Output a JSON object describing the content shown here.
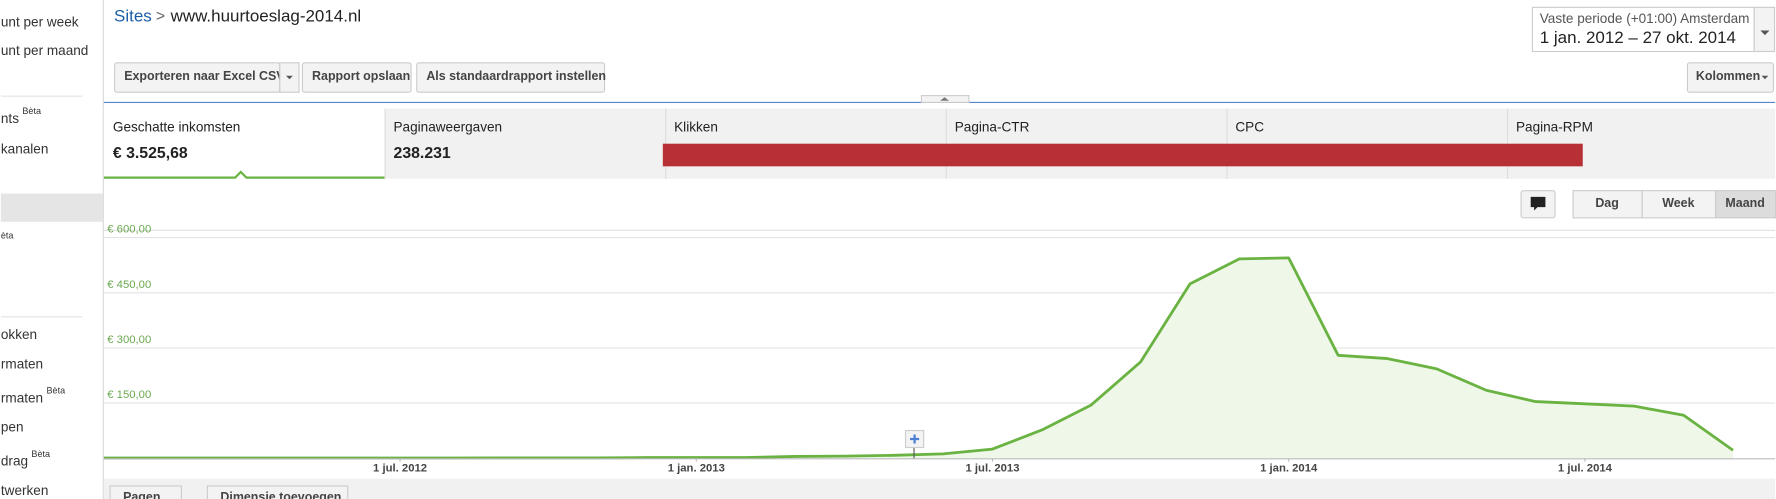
{
  "sidebar": [
    {
      "text": "unt per week"
    },
    {
      "text": "unt per maand"
    },
    {
      "text": "nts",
      "sup": "Bèta"
    },
    {
      "text": "kanalen"
    },
    {
      "text": "èta"
    },
    {
      "text": "okken"
    },
    {
      "text": "rmaten"
    },
    {
      "text": "rmaten",
      "sup": "Bèta"
    },
    {
      "text": "pen"
    },
    {
      "text": "drag",
      "sup": "Bèta"
    },
    {
      "text": "twerken"
    }
  ],
  "breadcrumb": {
    "root": "Sites",
    "separator": ">",
    "current": "www.huurtoeslag-2014.nl"
  },
  "date_range": {
    "label": "Vaste periode (+01:00) Amsterdam",
    "range": "1 jan. 2012 – 27 okt. 2014"
  },
  "toolbar": [
    "Exporteren naar Excel CSV",
    "Rapport opslaan",
    "Als standaardrapport instellen"
  ],
  "columns_button": "Kolommen",
  "metrics": [
    {
      "name": "Geschatte inkomsten",
      "value": "€ 3.525,68"
    },
    {
      "name": "Paginaweergaven",
      "value": "238.231"
    },
    {
      "name": "Klikken"
    },
    {
      "name": "Pagina-CTR"
    },
    {
      "name": "CPC"
    },
    {
      "name": "Pagina-RPM"
    }
  ],
  "view_buttons": [
    "Dag",
    "Week",
    "Maand"
  ],
  "chart_data": {
    "type": "area",
    "x": [
      "2012-01-01",
      "2012-02-01",
      "2012-03-01",
      "2012-04-01",
      "2012-05-01",
      "2012-06-01",
      "2012-07-01",
      "2012-08-01",
      "2012-09-01",
      "2012-10-01",
      "2012-11-01",
      "2012-12-01",
      "2013-01-01",
      "2013-02-01",
      "2013-03-01",
      "2013-04-01",
      "2013-05-01",
      "2013-06-01",
      "2013-07-01",
      "2013-08-01",
      "2013-09-01",
      "2013-10-01",
      "2013-11-01",
      "2013-12-01",
      "2014-01-01",
      "2014-02-01",
      "2014-03-01",
      "2014-04-01",
      "2014-05-01",
      "2014-06-01",
      "2014-07-01",
      "2014-08-01",
      "2014-09-01",
      "2014-10-01"
    ],
    "values": [
      0.5,
      0.5,
      0.5,
      0.5,
      0.5,
      0.5,
      0.5,
      0.5,
      1,
      1,
      1,
      2,
      2,
      2,
      5,
      6,
      8,
      12,
      25,
      77,
      145,
      262,
      474,
      542,
      545,
      280,
      271,
      243,
      185,
      154,
      148,
      142,
      117,
      22
    ],
    "color": "#6ab342",
    "fill": "#eef7e8",
    "xlim": [
      "2012-01-01",
      "2014-10-27"
    ],
    "xticks": [
      {
        "value": "2012-07-01",
        "label": "1 jul. 2012"
      },
      {
        "value": "2013-01-01",
        "label": "1 jan. 2013"
      },
      {
        "value": "2013-07-01",
        "label": "1 jul. 2013"
      },
      {
        "value": "2014-01-01",
        "label": "1 jan. 2014"
      },
      {
        "value": "2014-07-01",
        "label": "1 jul. 2014"
      }
    ],
    "ylim": [
      0,
      600
    ],
    "yticks": [
      {
        "value": 150,
        "label": "€ 150,00"
      },
      {
        "value": 300,
        "label": "€ 300,00"
      },
      {
        "value": 450,
        "label": "€ 450,00"
      },
      {
        "value": 600,
        "label": "€ 600,00"
      }
    ],
    "grid": true
  },
  "bottom_buttons": [
    "Pagen",
    "Dimensie toevoegen"
  ]
}
